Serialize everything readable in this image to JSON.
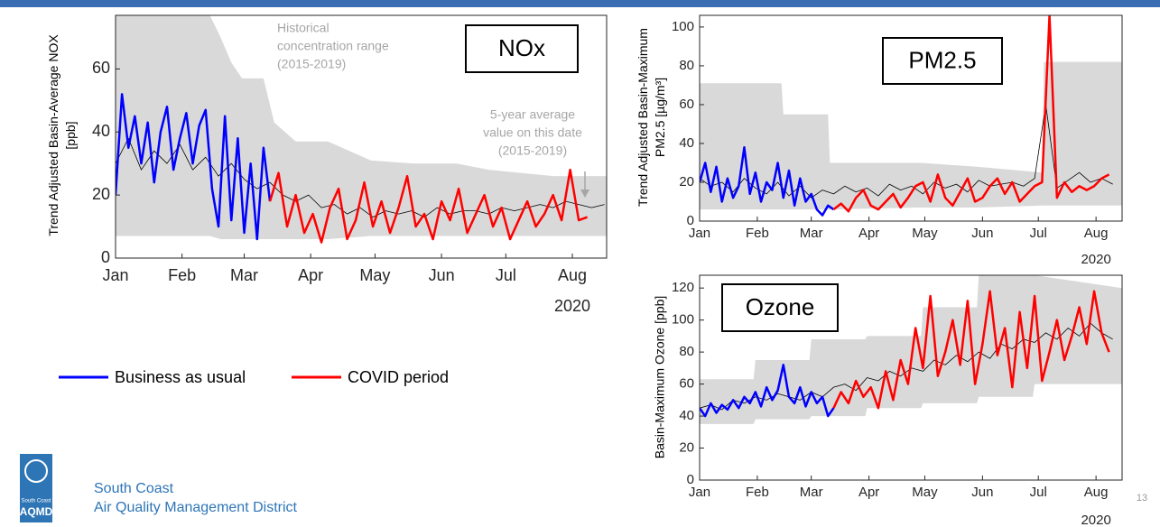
{
  "chart_data": [
    {
      "type": "line",
      "title": "NOx",
      "ylabel": [
        "Trend Adjusted Basin-Average NOX",
        "[ppb]"
      ],
      "xlim": [
        1,
        230
      ],
      "ylim": [
        0,
        77
      ],
      "yticks": [
        0,
        20,
        40,
        60
      ],
      "xticks": [
        {
          "value": 1,
          "label": "Jan"
        },
        {
          "value": 32,
          "label": "Feb"
        },
        {
          "value": 61,
          "label": "Mar"
        },
        {
          "value": 92,
          "label": "Apr"
        },
        {
          "value": 122,
          "label": "May"
        },
        {
          "value": 153,
          "label": "Jun"
        },
        {
          "value": 183,
          "label": "Jul"
        },
        {
          "value": 214,
          "label": "Aug"
        }
      ],
      "x_year_label": "2020",
      "annotations": [
        {
          "text": [
            "Historical",
            "concentration range",
            "(2015-2019)"
          ]
        },
        {
          "text": [
            "5-year average",
            "value on this date",
            "(2015-2019)"
          ]
        }
      ],
      "series": [
        {
          "color": "#d9d9d9",
          "x": [
            1,
            15,
            30,
            45,
            50,
            55,
            60,
            70,
            75,
            85,
            100,
            120,
            140,
            160,
            175,
            190,
            205,
            230
          ],
          "upper": [
            77,
            77,
            77,
            77,
            70,
            62,
            57,
            57,
            43,
            37,
            37,
            31,
            30,
            30,
            28,
            27,
            26,
            26
          ],
          "lower": [
            7,
            7,
            7,
            7,
            6,
            6,
            6,
            6,
            6,
            6,
            6,
            7,
            7,
            7,
            7,
            7,
            7,
            7
          ]
        },
        {
          "color": "#000000",
          "x": [
            1,
            7,
            13,
            19,
            25,
            31,
            37,
            43,
            49,
            55,
            61,
            67,
            73,
            79,
            85,
            91,
            97,
            103,
            109,
            115,
            121,
            127,
            133,
            139,
            145,
            151,
            157,
            163,
            169,
            175,
            181,
            187,
            193,
            199,
            205,
            211,
            217,
            223,
            229
          ],
          "values": [
            30,
            38,
            28,
            34,
            30,
            36,
            28,
            32,
            26,
            30,
            25,
            22,
            24,
            20,
            18,
            20,
            16,
            17,
            14,
            16,
            13,
            15,
            14,
            15,
            13,
            16,
            14,
            15,
            15,
            14,
            16,
            15,
            16,
            17,
            16,
            18,
            17,
            16,
            17
          ]
        },
        {
          "name": "Business as usual",
          "color": "#0000ff",
          "x": [
            1,
            4,
            7,
            10,
            13,
            16,
            19,
            22,
            25,
            28,
            31,
            34,
            37,
            40,
            43,
            46,
            49,
            52,
            55,
            58,
            61,
            64,
            67,
            70,
            73
          ],
          "values": [
            20,
            52,
            35,
            45,
            30,
            43,
            24,
            40,
            48,
            28,
            38,
            46,
            30,
            42,
            47,
            22,
            10,
            45,
            12,
            38,
            8,
            30,
            6,
            35,
            18
          ]
        },
        {
          "name": "COVID period",
          "color": "#ff0000",
          "x": [
            73,
            77,
            81,
            85,
            89,
            93,
            97,
            101,
            105,
            109,
            113,
            117,
            121,
            125,
            129,
            133,
            137,
            141,
            145,
            149,
            153,
            157,
            161,
            165,
            169,
            173,
            177,
            181,
            185,
            189,
            193,
            197,
            201,
            205,
            209,
            213,
            217,
            221
          ],
          "values": [
            18,
            27,
            10,
            20,
            8,
            14,
            5,
            16,
            22,
            6,
            12,
            24,
            10,
            18,
            8,
            16,
            26,
            10,
            14,
            6,
            18,
            12,
            22,
            8,
            14,
            20,
            10,
            16,
            6,
            12,
            18,
            10,
            14,
            20,
            12,
            28,
            12,
            13
          ]
        }
      ]
    },
    {
      "type": "line",
      "title": "PM2.5",
      "ylabel": [
        "Trend Adjusted Basin-Maximum",
        "PM2.5 [µg/m³]"
      ],
      "xlim": [
        1,
        228
      ],
      "ylim": [
        0,
        106
      ],
      "yticks": [
        0,
        20,
        40,
        60,
        80,
        100
      ],
      "xticks": [
        {
          "value": 1,
          "label": "Jan"
        },
        {
          "value": 32,
          "label": "Feb"
        },
        {
          "value": 61,
          "label": "Mar"
        },
        {
          "value": 92,
          "label": "Apr"
        },
        {
          "value": 122,
          "label": "May"
        },
        {
          "value": 153,
          "label": "Jun"
        },
        {
          "value": 183,
          "label": "Jul"
        },
        {
          "value": 214,
          "label": "Aug"
        }
      ],
      "x_year_label": "2020",
      "series": [
        {
          "color": "#d9d9d9",
          "x": [
            1,
            45,
            46,
            70,
            71,
            120,
            150,
            185,
            186,
            228
          ],
          "upper": [
            71,
            71,
            55,
            55,
            30,
            30,
            28,
            25,
            82,
            82
          ],
          "lower": [
            6,
            6,
            6,
            6,
            6,
            7,
            7,
            8,
            8,
            8
          ]
        },
        {
          "color": "#000000",
          "x": [
            1,
            7,
            13,
            19,
            25,
            31,
            37,
            43,
            49,
            55,
            61,
            67,
            73,
            79,
            85,
            91,
            97,
            103,
            109,
            115,
            121,
            127,
            133,
            139,
            145,
            151,
            157,
            163,
            169,
            175,
            181,
            187,
            193,
            199,
            205,
            211,
            217,
            223
          ],
          "values": [
            22,
            18,
            20,
            15,
            22,
            17,
            14,
            20,
            13,
            18,
            12,
            16,
            14,
            18,
            15,
            17,
            13,
            19,
            16,
            18,
            14,
            20,
            17,
            19,
            15,
            21,
            18,
            19,
            20,
            18,
            22,
            60,
            17,
            21,
            25,
            20,
            22,
            19
          ]
        },
        {
          "color": "#0000ff",
          "x": [
            1,
            4,
            7,
            10,
            13,
            16,
            19,
            22,
            25,
            28,
            31,
            34,
            37,
            40,
            43,
            46,
            49,
            52,
            55,
            58,
            61,
            64,
            67,
            70,
            73
          ],
          "values": [
            20,
            30,
            15,
            28,
            10,
            22,
            12,
            18,
            38,
            14,
            25,
            10,
            20,
            16,
            30,
            12,
            26,
            8,
            22,
            10,
            14,
            6,
            3,
            8,
            6
          ]
        },
        {
          "color": "#ff0000",
          "x": [
            73,
            77,
            81,
            85,
            89,
            93,
            97,
            101,
            105,
            109,
            113,
            117,
            121,
            125,
            129,
            133,
            137,
            141,
            145,
            149,
            153,
            157,
            161,
            165,
            169,
            173,
            177,
            181,
            185,
            189,
            193,
            197,
            201,
            205,
            209,
            213,
            217,
            221
          ],
          "values": [
            6,
            9,
            5,
            12,
            16,
            8,
            6,
            10,
            14,
            7,
            12,
            18,
            20,
            10,
            24,
            12,
            8,
            15,
            22,
            10,
            12,
            18,
            22,
            14,
            20,
            10,
            14,
            18,
            20,
            106,
            12,
            20,
            15,
            18,
            16,
            18,
            22,
            24
          ]
        }
      ]
    },
    {
      "type": "line",
      "title": "Ozone",
      "ylabel": [
        "Basin-Maximum Ozone [ppb]"
      ],
      "xlim": [
        1,
        228
      ],
      "ylim": [
        0,
        128
      ],
      "yticks": [
        0,
        20,
        40,
        60,
        80,
        100,
        120
      ],
      "xticks": [
        {
          "value": 1,
          "label": "Jan"
        },
        {
          "value": 32,
          "label": "Feb"
        },
        {
          "value": 61,
          "label": "Mar"
        },
        {
          "value": 92,
          "label": "Apr"
        },
        {
          "value": 122,
          "label": "May"
        },
        {
          "value": 153,
          "label": "Jun"
        },
        {
          "value": 183,
          "label": "Jul"
        },
        {
          "value": 214,
          "label": "Aug"
        }
      ],
      "x_year_label": "2020",
      "series": [
        {
          "color": "#d9d9d9",
          "x": [
            1,
            30,
            31,
            60,
            61,
            90,
            91,
            120,
            121,
            150,
            151,
            180,
            181,
            228
          ],
          "upper": [
            63,
            63,
            75,
            75,
            88,
            88,
            90,
            90,
            108,
            108,
            128,
            128,
            128,
            120
          ],
          "lower": [
            35,
            35,
            38,
            38,
            40,
            40,
            45,
            45,
            48,
            48,
            52,
            52,
            60,
            60
          ]
        },
        {
          "color": "#000000",
          "x": [
            1,
            7,
            13,
            19,
            25,
            31,
            37,
            43,
            49,
            55,
            61,
            67,
            73,
            79,
            85,
            91,
            97,
            103,
            109,
            115,
            121,
            127,
            133,
            139,
            145,
            151,
            157,
            163,
            169,
            175,
            181,
            187,
            193,
            199,
            205,
            211,
            217,
            223
          ],
          "values": [
            45,
            47,
            44,
            50,
            48,
            52,
            50,
            54,
            52,
            50,
            55,
            52,
            58,
            60,
            56,
            64,
            62,
            68,
            65,
            70,
            68,
            75,
            72,
            78,
            74,
            80,
            76,
            85,
            82,
            88,
            86,
            92,
            88,
            95,
            90,
            98,
            92,
            88
          ]
        },
        {
          "color": "#0000ff",
          "x": [
            1,
            4,
            7,
            10,
            13,
            16,
            19,
            22,
            25,
            28,
            31,
            34,
            37,
            40,
            43,
            46,
            49,
            52,
            55,
            58,
            61,
            64,
            67,
            70,
            73
          ],
          "values": [
            45,
            40,
            48,
            42,
            47,
            44,
            50,
            45,
            52,
            48,
            55,
            46,
            58,
            50,
            56,
            72,
            52,
            48,
            58,
            46,
            55,
            48,
            52,
            40,
            45
          ]
        },
        {
          "color": "#ff0000",
          "x": [
            73,
            77,
            81,
            85,
            89,
            93,
            97,
            101,
            105,
            109,
            113,
            117,
            121,
            125,
            129,
            133,
            137,
            141,
            145,
            149,
            153,
            157,
            161,
            165,
            169,
            173,
            177,
            181,
            185,
            189,
            193,
            197,
            201,
            205,
            209,
            213,
            217,
            221
          ],
          "values": [
            45,
            55,
            48,
            62,
            52,
            58,
            45,
            68,
            50,
            75,
            60,
            95,
            70,
            115,
            65,
            80,
            100,
            72,
            112,
            60,
            85,
            118,
            78,
            95,
            58,
            105,
            70,
            115,
            62,
            80,
            100,
            75,
            90,
            108,
            85,
            118,
            92,
            80
          ]
        }
      ]
    }
  ],
  "logo": {
    "line1": "South Coast",
    "line2": "AQMD"
  },
  "organization": [
    "South Coast",
    "Air Quality Management District"
  ],
  "page_number": "13"
}
